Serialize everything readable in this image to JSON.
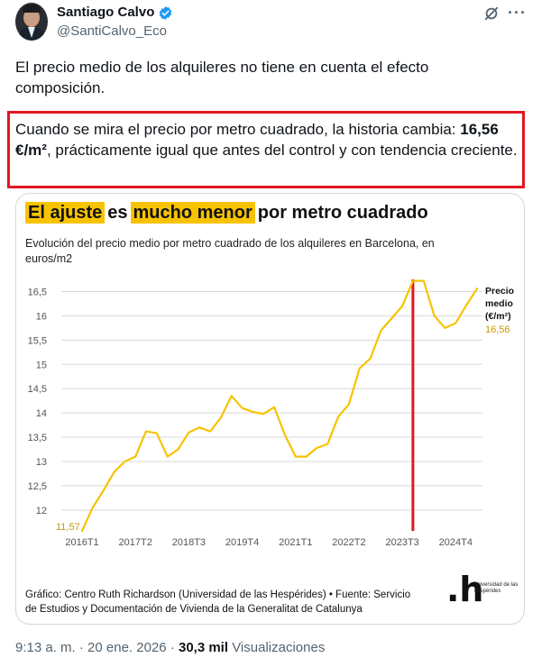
{
  "author": {
    "name": "Santiago Calvo",
    "handle": "@SantiCalvo_Eco"
  },
  "tweet": {
    "text1": "El precio medio de los alquileres no tiene en cuenta el efecto composición.",
    "text2_pre": "Cuando se mira el precio por metro cuadrado, la historia cambia: ",
    "text2_bold": "16,56 €/m²",
    "text2_post": ", prácticamente igual que antes del control y con tendencia creciente."
  },
  "card": {
    "title_part1": "El ajuste",
    "title_part2": "es",
    "title_part3": "mucho menor",
    "title_part4": "por metro cuadrado",
    "subtitle": "Evolución del precio medio por metro cuadrado de los alquileres en Barcelona, en euros/m2",
    "footer": "Gráfico: Centro Ruth Richardson (Universidad de las Hespérides) • Fuente: Servicio de Estudios y Documentación de Vivienda de la Generalitat de Catalunya",
    "logo_mark": ".h",
    "logo_text": "universidad de las hespérides"
  },
  "chart_data": {
    "type": "line",
    "series": [
      {
        "name": "Precio medio (€/m²)",
        "color": "#f7c300",
        "x": [
          "2016T1",
          "2016T2",
          "2016T3",
          "2016T4",
          "2017T1",
          "2017T2",
          "2017T3",
          "2017T4",
          "2018T1",
          "2018T2",
          "2018T3",
          "2018T4",
          "2019T1",
          "2019T2",
          "2019T3",
          "2019T4",
          "2020T1",
          "2020T2",
          "2020T3",
          "2020T4",
          "2021T1",
          "2021T2",
          "2021T3",
          "2021T4",
          "2022T1",
          "2022T2",
          "2022T3",
          "2022T4",
          "2023T1",
          "2023T2",
          "2023T3",
          "2023T4",
          "2024T1",
          "2024T2",
          "2024T3",
          "2024T4",
          "2025T1",
          "2025T2"
        ],
        "values": [
          11.57,
          12.05,
          12.4,
          12.78,
          13.0,
          13.1,
          13.62,
          13.58,
          13.1,
          13.25,
          13.6,
          13.7,
          13.62,
          13.9,
          14.35,
          14.1,
          14.02,
          13.98,
          14.12,
          13.55,
          13.1,
          13.1,
          13.28,
          13.36,
          13.92,
          14.18,
          14.92,
          15.12,
          15.7,
          15.95,
          16.2,
          16.72,
          16.72,
          16.0,
          15.75,
          15.85,
          16.22,
          16.56
        ]
      }
    ],
    "yticks": [
      "16,5",
      "16",
      "15,5",
      "15",
      "14,5",
      "14",
      "13,5",
      "13",
      "12,5",
      "12"
    ],
    "ytick_values": [
      16.5,
      16,
      15.5,
      15,
      14.5,
      14,
      13.5,
      13,
      12.5,
      12
    ],
    "xticks": [
      "2016T1",
      "2017T2",
      "2018T3",
      "2019T4",
      "2021T1",
      "2022T2",
      "2023T3",
      "2024T4"
    ],
    "ylim": [
      11.57,
      16.75
    ],
    "grid": true,
    "vertical_marker_after": "2023T4",
    "vertical_marker_color": "#e0191f",
    "start_label": "11,57",
    "end_label_line1": "Precio",
    "end_label_line2": "medio",
    "end_label_line3": "(€/m²)",
    "end_value_label": "16,56"
  },
  "footer": {
    "time": "9:13 a. m.",
    "separator": "·",
    "date": "20 ene. 2026",
    "views_count": "30,3 mil",
    "views_label": "Visualizaciones"
  },
  "colors": {
    "accent": "#f7c300",
    "highlight_border": "#e0191f",
    "verified": "#1d9bf0",
    "secondary_text": "#536471"
  }
}
